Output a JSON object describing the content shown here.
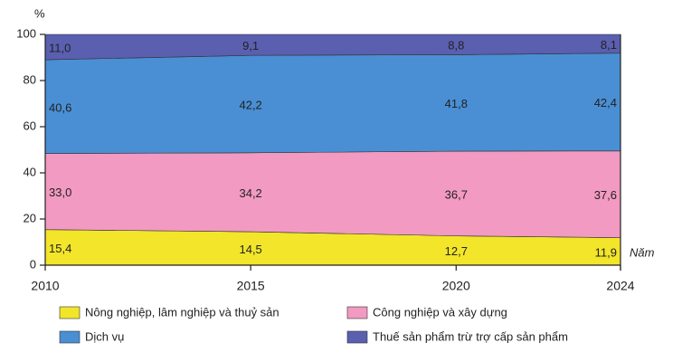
{
  "chart_data": {
    "type": "stacked-area",
    "y_label": "%",
    "x_label": "Năm",
    "x": [
      2010,
      2015,
      2020,
      2024
    ],
    "xlim": [
      2010,
      2024
    ],
    "xticks": [
      2010,
      2015,
      2020,
      2024
    ],
    "ylim": [
      0,
      100
    ],
    "yticks": [
      0,
      20,
      40,
      60,
      80,
      100
    ],
    "series": [
      {
        "name": "Nông nghiệp, lâm nghiệp và thuỷ sản",
        "color": "#f2e52a",
        "values": [
          15.4,
          14.5,
          12.7,
          11.9
        ],
        "value_labels": [
          "15,4",
          "14,5",
          "12,7",
          "11,9"
        ]
      },
      {
        "name": "Công nghiệp và xây dựng",
        "color": "#f29ac1",
        "values": [
          33.0,
          34.2,
          36.7,
          37.6
        ],
        "value_labels": [
          "33,0",
          "34,2",
          "36,7",
          "37,6"
        ]
      },
      {
        "name": "Dịch vụ",
        "color": "#4a8fd4",
        "values": [
          40.6,
          42.2,
          41.8,
          42.4
        ],
        "value_labels": [
          "40,6",
          "42,2",
          "41,8",
          "42,4"
        ]
      },
      {
        "name": "Thuế sản phẩm trừ trợ cấp sản phẩm",
        "color": "#5a5fb0",
        "values": [
          11.0,
          9.1,
          8.8,
          8.1
        ],
        "value_labels": [
          "11,0",
          "9,1",
          "8,8",
          "8,1"
        ]
      }
    ]
  }
}
